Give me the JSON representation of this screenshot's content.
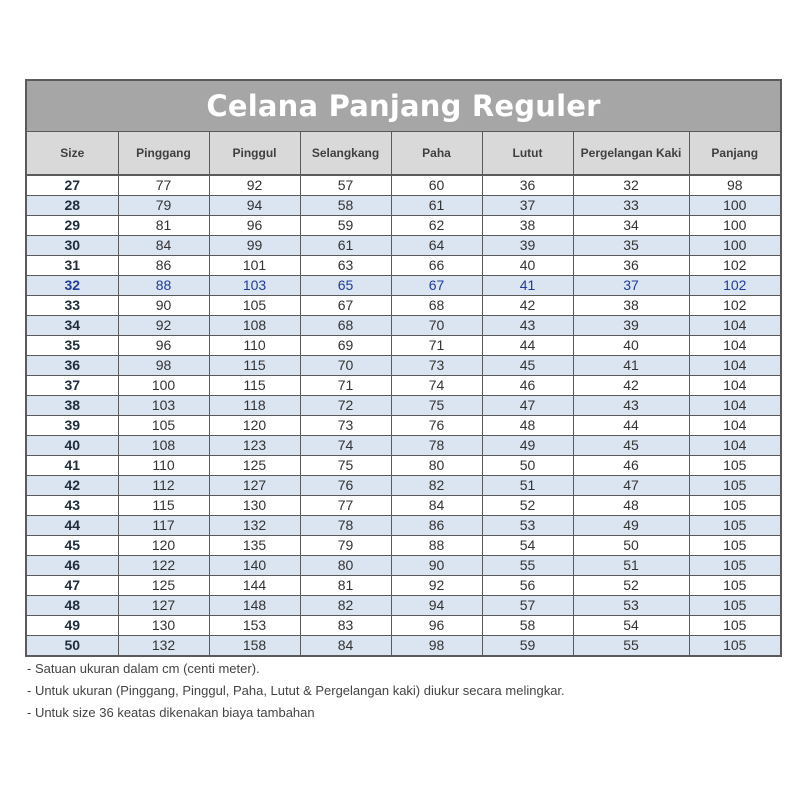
{
  "title": "Celana Panjang Reguler",
  "columns": [
    "Size",
    "Pinggang",
    "Pinggul",
    "Selangkang",
    "Paha",
    "Lutut",
    "Pergelangan Kaki",
    "Panjang"
  ],
  "rows": [
    [
      "27",
      "77",
      "92",
      "57",
      "60",
      "36",
      "32",
      "98"
    ],
    [
      "28",
      "79",
      "94",
      "58",
      "61",
      "37",
      "33",
      "100"
    ],
    [
      "29",
      "81",
      "96",
      "59",
      "62",
      "38",
      "34",
      "100"
    ],
    [
      "30",
      "84",
      "99",
      "61",
      "64",
      "39",
      "35",
      "100"
    ],
    [
      "31",
      "86",
      "101",
      "63",
      "66",
      "40",
      "36",
      "102"
    ],
    [
      "32",
      "88",
      "103",
      "65",
      "67",
      "41",
      "37",
      "102"
    ],
    [
      "33",
      "90",
      "105",
      "67",
      "68",
      "42",
      "38",
      "102"
    ],
    [
      "34",
      "92",
      "108",
      "68",
      "70",
      "43",
      "39",
      "104"
    ],
    [
      "35",
      "96",
      "110",
      "69",
      "71",
      "44",
      "40",
      "104"
    ],
    [
      "36",
      "98",
      "115",
      "70",
      "73",
      "45",
      "41",
      "104"
    ],
    [
      "37",
      "100",
      "115",
      "71",
      "74",
      "46",
      "42",
      "104"
    ],
    [
      "38",
      "103",
      "118",
      "72",
      "75",
      "47",
      "43",
      "104"
    ],
    [
      "39",
      "105",
      "120",
      "73",
      "76",
      "48",
      "44",
      "104"
    ],
    [
      "40",
      "108",
      "123",
      "74",
      "78",
      "49",
      "45",
      "104"
    ],
    [
      "41",
      "110",
      "125",
      "75",
      "80",
      "50",
      "46",
      "105"
    ],
    [
      "42",
      "112",
      "127",
      "76",
      "82",
      "51",
      "47",
      "105"
    ],
    [
      "43",
      "115",
      "130",
      "77",
      "84",
      "52",
      "48",
      "105"
    ],
    [
      "44",
      "117",
      "132",
      "78",
      "86",
      "53",
      "49",
      "105"
    ],
    [
      "45",
      "120",
      "135",
      "79",
      "88",
      "54",
      "50",
      "105"
    ],
    [
      "46",
      "122",
      "140",
      "80",
      "90",
      "55",
      "51",
      "105"
    ],
    [
      "47",
      "125",
      "144",
      "81",
      "92",
      "56",
      "52",
      "105"
    ],
    [
      "48",
      "127",
      "148",
      "82",
      "94",
      "57",
      "53",
      "105"
    ],
    [
      "49",
      "130",
      "153",
      "83",
      "96",
      "58",
      "54",
      "105"
    ],
    [
      "50",
      "132",
      "158",
      "84",
      "98",
      "59",
      "55",
      "105"
    ]
  ],
  "notes": [
    "- Satuan ukuran dalam cm (centi meter).",
    "- Untuk ukuran (Pinggang, Pinggul, Paha, Lutut & Pergelangan kaki) diukur secara melingkar.",
    "- Untuk size 36 keatas dikenakan biaya tambahan"
  ],
  "colors": {
    "title_bg": "#a6a6a6",
    "header_bg": "#d9d9d9",
    "alt_row_bg": "#dbe5f1",
    "highlight_text": "#1f3b99",
    "border": "#5a5a5a"
  }
}
